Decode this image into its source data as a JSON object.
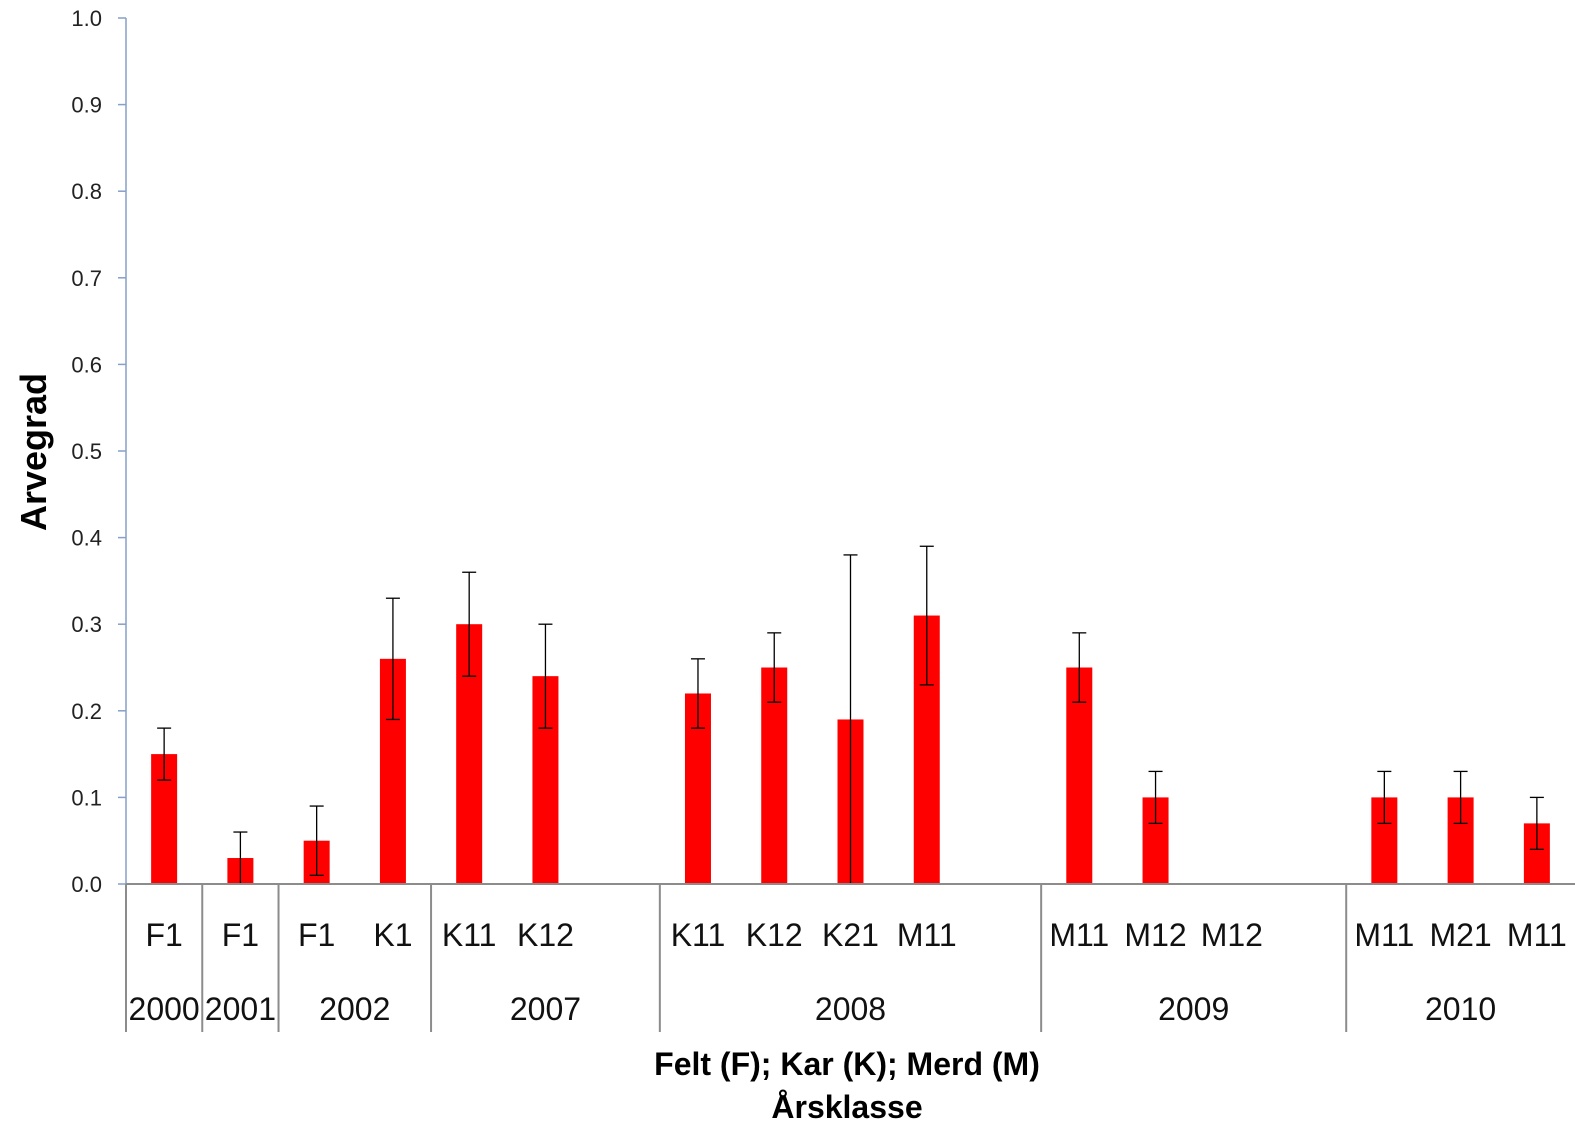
{
  "chart_data": {
    "type": "bar",
    "ylabel": "Arvegrad",
    "xlabel": "Felt (F); Kar (K); Merd (M)",
    "xlabel2": "Årsklasse",
    "ylim": [
      0,
      1.0
    ],
    "yticks": [
      "0.0",
      "0.1",
      "0.2",
      "0.3",
      "0.4",
      "0.5",
      "0.6",
      "0.7",
      "0.8",
      "0.9",
      "1.0"
    ],
    "bar_color": "#ff0000",
    "grid": false,
    "legend": "none",
    "categories": [
      "F1",
      "F1",
      "F1",
      "K1",
      "K11",
      "K12",
      "",
      "K11",
      "K12",
      "K21",
      "M11",
      "",
      "M11",
      "M12",
      "M12",
      "",
      "M11",
      "M21",
      "M11"
    ],
    "values": [
      0.15,
      0.03,
      0.05,
      0.26,
      0.3,
      0.24,
      null,
      0.22,
      0.25,
      0.19,
      0.31,
      null,
      0.25,
      0.1,
      null,
      null,
      0.1,
      0.1,
      0.07
    ],
    "err_low": [
      0.12,
      0.0,
      0.01,
      0.19,
      0.24,
      0.18,
      null,
      0.18,
      0.21,
      0.0,
      0.23,
      null,
      0.21,
      0.07,
      null,
      null,
      0.07,
      0.07,
      0.04
    ],
    "err_high": [
      0.18,
      0.06,
      0.09,
      0.33,
      0.36,
      0.3,
      null,
      0.26,
      0.29,
      0.38,
      0.39,
      null,
      0.29,
      0.13,
      null,
      null,
      0.13,
      0.13,
      0.1
    ],
    "groups": [
      {
        "label": "2000",
        "start": 0,
        "end": 0
      },
      {
        "label": "2001",
        "start": 1,
        "end": 1
      },
      {
        "label": "2002",
        "start": 2,
        "end": 3
      },
      {
        "label": "2007",
        "start": 4,
        "end": 6
      },
      {
        "label": "2008",
        "start": 7,
        "end": 11
      },
      {
        "label": "2009",
        "start": 12,
        "end": 15
      },
      {
        "label": "2010",
        "start": 16,
        "end": 18
      }
    ]
  }
}
